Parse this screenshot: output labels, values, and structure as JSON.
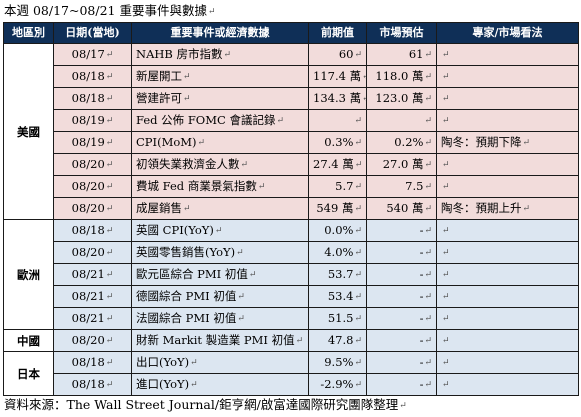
{
  "title": "本週 08/17~08/21 重要事件與數據",
  "headers": [
    "地區別",
    "日期(當地)",
    "重要事件或經濟數據",
    "前期值",
    "市場預估",
    "專家/市場看法"
  ],
  "groups": [
    {
      "region": "美國",
      "theme": "us",
      "rows": [
        {
          "date": "08/17",
          "event": "NAHB 房市指數",
          "prev": "60",
          "fcst": "61",
          "note": ""
        },
        {
          "date": "08/18",
          "event": "新屋開工",
          "prev": "117.4 萬",
          "fcst": "118.0 萬",
          "note": ""
        },
        {
          "date": "08/18",
          "event": "營建許可",
          "prev": "134.3 萬",
          "fcst": "123.0 萬",
          "note": ""
        },
        {
          "date": "08/19",
          "event": "Fed 公佈 FOMC 會議記錄",
          "prev": "",
          "fcst": "",
          "note": ""
        },
        {
          "date": "08/19",
          "event": "CPI(MoM)",
          "prev": "0.3%",
          "fcst": "0.2%",
          "note": "陶冬：預期下降"
        },
        {
          "date": "08/20",
          "event": "初領失業救濟金人數",
          "prev": "27.4 萬",
          "fcst": "27.0 萬",
          "note": ""
        },
        {
          "date": "08/20",
          "event": "費城 Fed 商業景氣指數",
          "prev": "5.7",
          "fcst": "7.5",
          "note": ""
        },
        {
          "date": "08/20",
          "event": "成屋銷售",
          "prev": "549 萬",
          "fcst": "540 萬",
          "note": "陶冬：預期上升"
        }
      ]
    },
    {
      "region": "歐洲",
      "theme": "eu",
      "rows": [
        {
          "date": "08/18",
          "event": "英國 CPI(YoY)",
          "prev": "0.0%",
          "fcst": "-",
          "note": ""
        },
        {
          "date": "08/20",
          "event": "英國零售銷售(YoY)",
          "prev": "4.0%",
          "fcst": "-",
          "note": ""
        },
        {
          "date": "08/21",
          "event": "歐元區綜合 PMI 初值",
          "prev": "53.7",
          "fcst": "-",
          "note": ""
        },
        {
          "date": "08/21",
          "event": "德國綜合 PMI 初值",
          "prev": "53.4",
          "fcst": "-",
          "note": ""
        },
        {
          "date": "08/21",
          "event": "法國綜合 PMI 初值",
          "prev": "51.5",
          "fcst": "-",
          "note": ""
        }
      ]
    },
    {
      "region": "中國",
      "theme": "cn",
      "rows": [
        {
          "date": "08/20",
          "event": "財新 Markit 製造業 PMI 初值",
          "prev": "47.8",
          "fcst": "-",
          "note": ""
        }
      ]
    },
    {
      "region": "日本",
      "theme": "jp",
      "rows": [
        {
          "date": "08/18",
          "event": "出口(YoY)",
          "prev": "9.5%",
          "fcst": "-",
          "note": ""
        },
        {
          "date": "08/18",
          "event": "進口(YoY)",
          "prev": "-2.9%",
          "fcst": "-",
          "note": ""
        }
      ]
    }
  ],
  "source": "資料來源：The Wall Street Journal/鉅亨網/啟富達國際研究團隊整理"
}
